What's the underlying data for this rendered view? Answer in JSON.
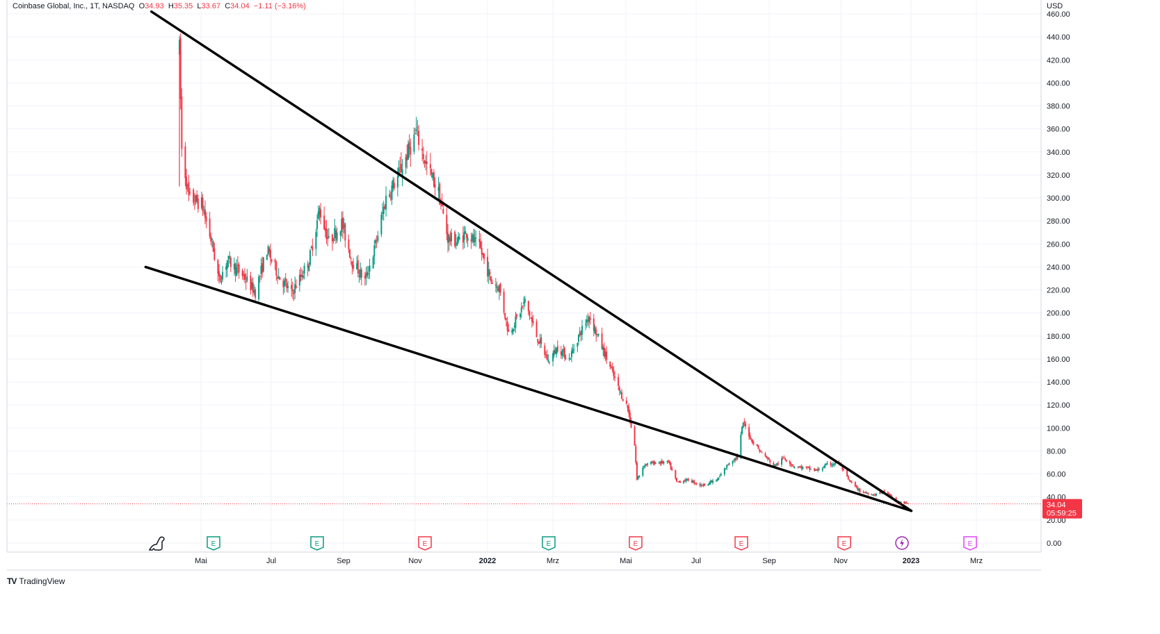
{
  "header": {
    "symbol": "Coinbase Global, Inc., 1T, NASDAQ",
    "open_label": "O",
    "open": "34.93",
    "high_label": "H",
    "high": "35.35",
    "low_label": "L",
    "low": "33.67",
    "close_label": "C",
    "close": "34.04",
    "change": "−1.11 (−3.16%)"
  },
  "price_axis": {
    "currency": "USD",
    "ticks": [
      "460.00",
      "440.00",
      "420.00",
      "400.00",
      "380.00",
      "360.00",
      "340.00",
      "320.00",
      "300.00",
      "280.00",
      "260.00",
      "240.00",
      "220.00",
      "200.00",
      "180.00",
      "160.00",
      "140.00",
      "120.00",
      "100.00",
      "80.00",
      "60.00",
      "40.00",
      "20.00",
      "0.00"
    ]
  },
  "time_axis": {
    "ticks": [
      {
        "label": "Mai",
        "bold": false
      },
      {
        "label": "Jul",
        "bold": false
      },
      {
        "label": "Sep",
        "bold": false
      },
      {
        "label": "Nov",
        "bold": false
      },
      {
        "label": "2022",
        "bold": true
      },
      {
        "label": "Mrz",
        "bold": false
      },
      {
        "label": "Mai",
        "bold": false
      },
      {
        "label": "Jul",
        "bold": false
      },
      {
        "label": "Sep",
        "bold": false
      },
      {
        "label": "Nov",
        "bold": false
      },
      {
        "label": "2023",
        "bold": true
      },
      {
        "label": "Mrz",
        "bold": false
      }
    ]
  },
  "last_price": {
    "value": "34.04",
    "countdown": "05:59:25",
    "color": "#f23645"
  },
  "earnings_markers": [
    {
      "label": "E",
      "type": "earnings-positive",
      "color": "#089981"
    },
    {
      "label": "E",
      "type": "earnings-positive",
      "color": "#089981"
    },
    {
      "label": "E",
      "type": "earnings-negative",
      "color": "#f23645"
    },
    {
      "label": "E",
      "type": "earnings-positive",
      "color": "#089981"
    },
    {
      "label": "E",
      "type": "earnings-negative",
      "color": "#f23645"
    },
    {
      "label": "E",
      "type": "earnings-negative",
      "color": "#f23645"
    },
    {
      "label": "E",
      "type": "earnings-negative",
      "color": "#f23645"
    },
    {
      "label": "",
      "type": "split-lightning",
      "color": "#9c27b0"
    },
    {
      "label": "E",
      "type": "earnings-upcoming",
      "color": "#e040fb"
    }
  ],
  "footer": {
    "brand": "TradingView",
    "logo": "tradingview-logo"
  },
  "colors": {
    "up": "#089981",
    "down": "#f23645",
    "trendline": "#000000",
    "grid": "#f0f3fa"
  },
  "chart_data": {
    "type": "candlestick",
    "title": "Coinbase Global, Inc., 1T, NASDAQ",
    "xlabel": "",
    "ylabel": "USD",
    "ylim": [
      0,
      460
    ],
    "xlim": [
      "2021-03-10",
      "2023-04-06"
    ],
    "grid": true,
    "anchors": [
      [
        "2021-04-14",
        310
      ],
      [
        "2021-04-14",
        429
      ],
      [
        "2021-04-16",
        342
      ],
      [
        "2021-04-22",
        300
      ],
      [
        "2021-05-03",
        295
      ],
      [
        "2021-05-12",
        260
      ],
      [
        "2021-05-18",
        228
      ],
      [
        "2021-05-25",
        246
      ],
      [
        "2021-06-08",
        232
      ],
      [
        "2021-06-18",
        218
      ],
      [
        "2021-06-28",
        255
      ],
      [
        "2021-07-08",
        232
      ],
      [
        "2021-07-19",
        217
      ],
      [
        "2021-08-03",
        245
      ],
      [
        "2021-08-12",
        290
      ],
      [
        "2021-08-20",
        262
      ],
      [
        "2021-08-31",
        278
      ],
      [
        "2021-09-09",
        245
      ],
      [
        "2021-09-20",
        228
      ],
      [
        "2021-09-28",
        255
      ],
      [
        "2021-10-08",
        300
      ],
      [
        "2021-10-18",
        318
      ],
      [
        "2021-10-27",
        340
      ],
      [
        "2021-11-03",
        357
      ],
      [
        "2021-11-11",
        330
      ],
      [
        "2021-11-22",
        305
      ],
      [
        "2021-11-30",
        265
      ],
      [
        "2021-12-08",
        262
      ],
      [
        "2021-12-16",
        270
      ],
      [
        "2021-12-28",
        255
      ],
      [
        "2022-01-06",
        228
      ],
      [
        "2022-01-13",
        222
      ],
      [
        "2022-01-21",
        183
      ],
      [
        "2022-01-28",
        195
      ],
      [
        "2022-02-04",
        210
      ],
      [
        "2022-02-14",
        180
      ],
      [
        "2022-02-24",
        158
      ],
      [
        "2022-03-04",
        170
      ],
      [
        "2022-03-14",
        160
      ],
      [
        "2022-03-22",
        180
      ],
      [
        "2022-03-31",
        198
      ],
      [
        "2022-04-08",
        178
      ],
      [
        "2022-04-18",
        153
      ],
      [
        "2022-04-26",
        132
      ],
      [
        "2022-05-03",
        118
      ],
      [
        "2022-05-09",
        85
      ],
      [
        "2022-05-11",
        55
      ],
      [
        "2022-05-17",
        68
      ],
      [
        "2022-05-27",
        70
      ],
      [
        "2022-06-07",
        70
      ],
      [
        "2022-06-14",
        53
      ],
      [
        "2022-06-24",
        55
      ],
      [
        "2022-07-05",
        50
      ],
      [
        "2022-07-19",
        55
      ],
      [
        "2022-07-29",
        70
      ],
      [
        "2022-08-05",
        75
      ],
      [
        "2022-08-10",
        105
      ],
      [
        "2022-08-17",
        90
      ],
      [
        "2022-08-26",
        78
      ],
      [
        "2022-09-06",
        67
      ],
      [
        "2022-09-14",
        74
      ],
      [
        "2022-09-22",
        67
      ],
      [
        "2022-10-03",
        65
      ],
      [
        "2022-10-12",
        63
      ],
      [
        "2022-10-21",
        68
      ],
      [
        "2022-10-31",
        70
      ],
      [
        "2022-11-08",
        55
      ],
      [
        "2022-11-18",
        45
      ],
      [
        "2022-11-30",
        42
      ],
      [
        "2022-12-09",
        45
      ],
      [
        "2022-12-20",
        36
      ],
      [
        "2022-12-30",
        34.04
      ]
    ],
    "last_bar": {
      "date": "2022-12-30",
      "open": 34.93,
      "high": 35.35,
      "low": 33.67,
      "close": 34.04
    },
    "trendlines": [
      {
        "name": "upper-trendline",
        "start": [
          "2021-03-21",
          462
        ],
        "end": [
          "2023-01-01",
          28
        ]
      },
      {
        "name": "lower-trendline",
        "start": [
          "2021-03-16",
          240
        ],
        "end": [
          "2023-01-01",
          28
        ]
      }
    ]
  }
}
